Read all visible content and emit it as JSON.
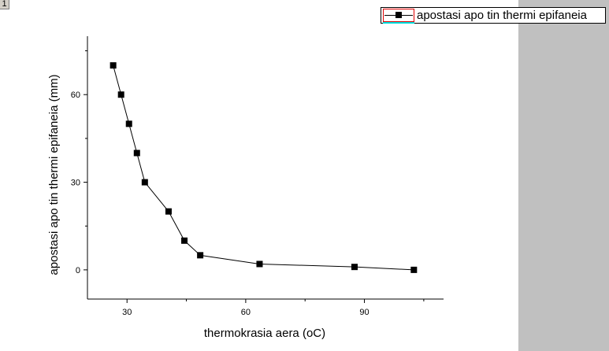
{
  "layer_tag": "1",
  "legend": {
    "label": "apostasi apo tin thermi epifaneia"
  },
  "chart_data": {
    "type": "line",
    "xlabel": "thermokrasia aera (oC)",
    "ylabel": "apostasi apo tin thermi epifaneia (mm)",
    "xlim": [
      20,
      110
    ],
    "ylim": [
      -10,
      80
    ],
    "xticks": [
      30,
      60,
      90
    ],
    "yticks": [
      0,
      30,
      60
    ],
    "series": [
      {
        "name": "apostasi apo tin thermi epifaneia",
        "color": "#000000",
        "marker": "square",
        "x": [
          26.5,
          28.5,
          30.5,
          32.5,
          34.5,
          40.5,
          44.5,
          48.5,
          63.5,
          87.5,
          102.5
        ],
        "y": [
          70,
          60,
          50,
          40,
          30,
          20,
          10,
          5,
          2,
          1,
          0
        ]
      }
    ]
  }
}
